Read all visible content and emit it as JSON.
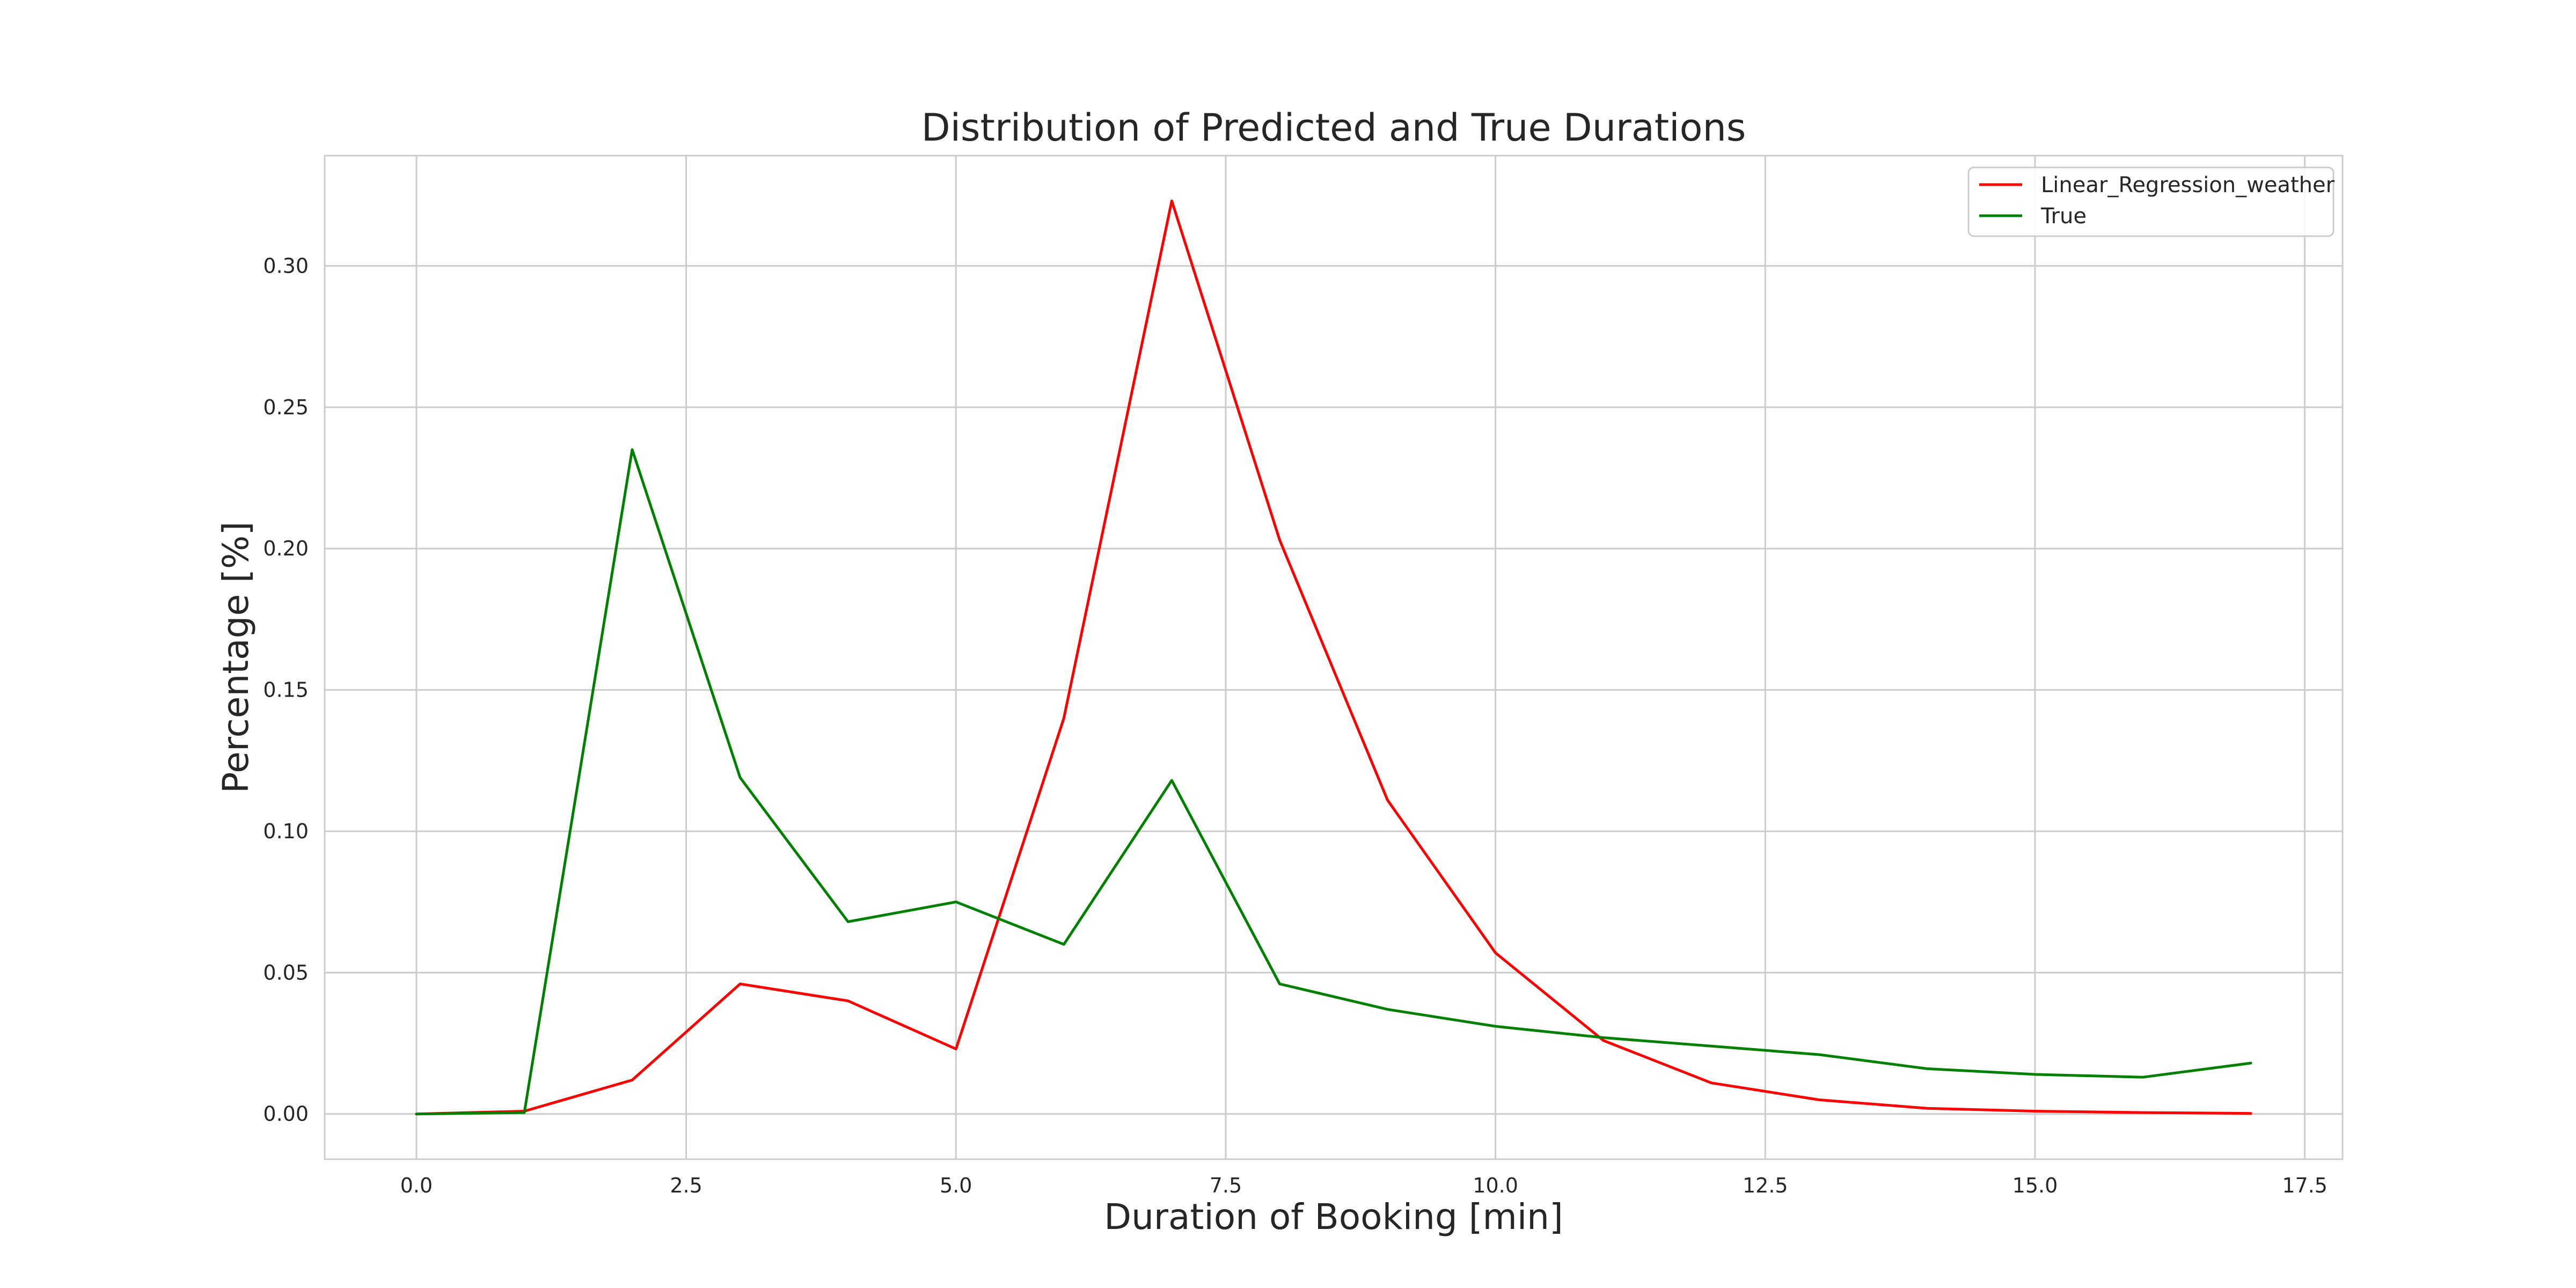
{
  "chart_data": {
    "type": "line",
    "title": "Distribution of Predicted and True Durations",
    "xlabel": "Duration of Booking [min]",
    "ylabel": "Percentage [%]",
    "xlim": [
      -0.85,
      17.85
    ],
    "ylim": [
      -0.016,
      0.339
    ],
    "x_ticks": [
      0.0,
      2.5,
      5.0,
      7.5,
      10.0,
      12.5,
      15.0,
      17.5
    ],
    "x_tick_labels": [
      "0.0",
      "2.5",
      "5.0",
      "7.5",
      "10.0",
      "12.5",
      "15.0",
      "17.5"
    ],
    "y_ticks": [
      0.0,
      0.05,
      0.1,
      0.15,
      0.2,
      0.25,
      0.3
    ],
    "y_tick_labels": [
      "0.00",
      "0.05",
      "0.10",
      "0.15",
      "0.20",
      "0.25",
      "0.30"
    ],
    "grid": true,
    "legend_position": "top-right",
    "x": [
      0,
      1,
      2,
      3,
      4,
      5,
      6,
      7,
      8,
      9,
      10,
      11,
      12,
      13,
      14,
      15,
      16,
      17
    ],
    "series": [
      {
        "name": "Linear_Regression_weather",
        "color": "#ff0000",
        "values": [
          0.0,
          0.001,
          0.012,
          0.046,
          0.04,
          0.023,
          0.14,
          0.323,
          0.203,
          0.111,
          0.057,
          0.026,
          0.011,
          0.005,
          0.002,
          0.001,
          0.0005,
          0.0002
        ]
      },
      {
        "name": "True",
        "color": "#008000",
        "values": [
          0.0,
          0.0005,
          0.235,
          0.119,
          0.068,
          0.075,
          0.06,
          0.118,
          0.046,
          0.037,
          0.031,
          0.027,
          0.024,
          0.021,
          0.016,
          0.014,
          0.013,
          0.018
        ]
      }
    ]
  }
}
